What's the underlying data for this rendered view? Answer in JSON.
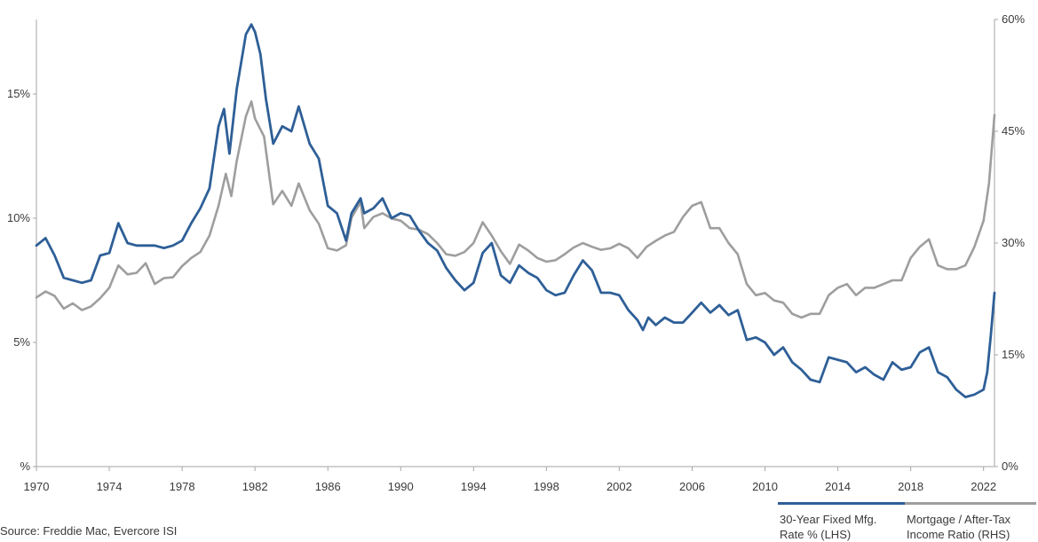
{
  "chart_data": {
    "type": "line",
    "title": "",
    "x_ticks": [
      "1970",
      "1974",
      "1978",
      "1982",
      "1986",
      "1990",
      "1994",
      "1998",
      "2002",
      "2006",
      "2010",
      "2014",
      "2018",
      "2022"
    ],
    "xlim": [
      1970,
      2022.6
    ],
    "y_left": {
      "ticks": [
        "%",
        "5%",
        "10%",
        "15%"
      ],
      "tick_values": [
        0,
        5,
        10,
        15
      ],
      "ylim": [
        0,
        18
      ]
    },
    "y_right": {
      "ticks": [
        "0%",
        "15%",
        "30%",
        "45%",
        "60%"
      ],
      "tick_values": [
        0,
        15,
        30,
        45,
        60
      ],
      "ylim": [
        0,
        60
      ]
    },
    "grid": false,
    "legend_position": "bottom-right",
    "series": [
      {
        "name": "30-Year Fixed Mfg. Rate % (LHS)",
        "axis": "left",
        "color": "#2e5f97",
        "points": [
          [
            1970,
            8.9
          ],
          [
            1970.5,
            9.2
          ],
          [
            1971,
            8.5
          ],
          [
            1971.5,
            7.6
          ],
          [
            1972,
            7.5
          ],
          [
            1972.5,
            7.4
          ],
          [
            1973,
            7.5
          ],
          [
            1973.5,
            8.5
          ],
          [
            1974,
            8.6
          ],
          [
            1974.5,
            9.8
          ],
          [
            1975,
            9.0
          ],
          [
            1975.5,
            8.9
          ],
          [
            1976,
            8.9
          ],
          [
            1976.5,
            8.9
          ],
          [
            1977,
            8.8
          ],
          [
            1977.5,
            8.9
          ],
          [
            1978,
            9.1
          ],
          [
            1978.5,
            9.8
          ],
          [
            1979,
            10.4
          ],
          [
            1979.5,
            11.2
          ],
          [
            1980,
            13.7
          ],
          [
            1980.3,
            14.4
          ],
          [
            1980.6,
            12.6
          ],
          [
            1981,
            15.2
          ],
          [
            1981.5,
            17.4
          ],
          [
            1981.8,
            17.8
          ],
          [
            1982,
            17.5
          ],
          [
            1982.3,
            16.6
          ],
          [
            1982.6,
            14.8
          ],
          [
            1983,
            13.0
          ],
          [
            1983.5,
            13.7
          ],
          [
            1984,
            13.5
          ],
          [
            1984.4,
            14.5
          ],
          [
            1985,
            13.0
          ],
          [
            1985.5,
            12.4
          ],
          [
            1986,
            10.5
          ],
          [
            1986.5,
            10.2
          ],
          [
            1987,
            9.1
          ],
          [
            1987.3,
            10.2
          ],
          [
            1987.8,
            10.8
          ],
          [
            1988,
            10.2
          ],
          [
            1988.5,
            10.4
          ],
          [
            1989,
            10.8
          ],
          [
            1989.5,
            10.0
          ],
          [
            1990,
            10.2
          ],
          [
            1990.5,
            10.1
          ],
          [
            1991,
            9.5
          ],
          [
            1991.5,
            9.0
          ],
          [
            1992,
            8.7
          ],
          [
            1992.5,
            8.0
          ],
          [
            1993,
            7.5
          ],
          [
            1993.5,
            7.1
          ],
          [
            1994,
            7.4
          ],
          [
            1994.5,
            8.6
          ],
          [
            1995,
            9.0
          ],
          [
            1995.5,
            7.7
          ],
          [
            1996,
            7.4
          ],
          [
            1996.5,
            8.1
          ],
          [
            1997,
            7.8
          ],
          [
            1997.5,
            7.6
          ],
          [
            1998,
            7.1
          ],
          [
            1998.5,
            6.9
          ],
          [
            1999,
            7.0
          ],
          [
            1999.5,
            7.7
          ],
          [
            2000,
            8.3
          ],
          [
            2000.5,
            7.9
          ],
          [
            2001,
            7.0
          ],
          [
            2001.5,
            7.0
          ],
          [
            2002,
            6.9
          ],
          [
            2002.5,
            6.3
          ],
          [
            2003,
            5.9
          ],
          [
            2003.3,
            5.5
          ],
          [
            2003.6,
            6.0
          ],
          [
            2004,
            5.7
          ],
          [
            2004.5,
            6.0
          ],
          [
            2005,
            5.8
          ],
          [
            2005.5,
            5.8
          ],
          [
            2006,
            6.2
          ],
          [
            2006.5,
            6.6
          ],
          [
            2007,
            6.2
          ],
          [
            2007.5,
            6.5
          ],
          [
            2008,
            6.1
          ],
          [
            2008.5,
            6.3
          ],
          [
            2009,
            5.1
          ],
          [
            2009.5,
            5.2
          ],
          [
            2010,
            5.0
          ],
          [
            2010.5,
            4.5
          ],
          [
            2011,
            4.8
          ],
          [
            2011.5,
            4.2
          ],
          [
            2012,
            3.9
          ],
          [
            2012.5,
            3.5
          ],
          [
            2013,
            3.4
          ],
          [
            2013.5,
            4.4
          ],
          [
            2014,
            4.3
          ],
          [
            2014.5,
            4.2
          ],
          [
            2015,
            3.8
          ],
          [
            2015.5,
            4.0
          ],
          [
            2016,
            3.7
          ],
          [
            2016.5,
            3.5
          ],
          [
            2017,
            4.2
          ],
          [
            2017.5,
            3.9
          ],
          [
            2018,
            4.0
          ],
          [
            2018.5,
            4.6
          ],
          [
            2019,
            4.8
          ],
          [
            2019.5,
            3.8
          ],
          [
            2020,
            3.6
          ],
          [
            2020.5,
            3.1
          ],
          [
            2021,
            2.8
          ],
          [
            2021.5,
            2.9
          ],
          [
            2022,
            3.1
          ],
          [
            2022.2,
            3.8
          ],
          [
            2022.4,
            5.3
          ],
          [
            2022.6,
            7.0
          ]
        ]
      },
      {
        "name": "Mortgage / After-Tax Income Ratio (RHS)",
        "axis": "right",
        "color": "#9e9e9e",
        "points": [
          [
            1970,
            22.7
          ],
          [
            1970.5,
            23.5
          ],
          [
            1971,
            22.9
          ],
          [
            1971.5,
            21.2
          ],
          [
            1972,
            21.9
          ],
          [
            1972.5,
            21.0
          ],
          [
            1973,
            21.5
          ],
          [
            1973.5,
            22.6
          ],
          [
            1974,
            24.0
          ],
          [
            1974.5,
            27.0
          ],
          [
            1975,
            25.8
          ],
          [
            1975.5,
            26.0
          ],
          [
            1976,
            27.3
          ],
          [
            1976.5,
            24.5
          ],
          [
            1977,
            25.3
          ],
          [
            1977.5,
            25.4
          ],
          [
            1978,
            26.9
          ],
          [
            1978.5,
            28.0
          ],
          [
            1979,
            28.8
          ],
          [
            1979.5,
            31.0
          ],
          [
            1980,
            35.0
          ],
          [
            1980.4,
            39.3
          ],
          [
            1980.7,
            36.3
          ],
          [
            1981,
            41.0
          ],
          [
            1981.5,
            47.0
          ],
          [
            1981.8,
            49.0
          ],
          [
            1982,
            46.7
          ],
          [
            1982.5,
            44.3
          ],
          [
            1983,
            35.2
          ],
          [
            1983.5,
            37.0
          ],
          [
            1984,
            35.0
          ],
          [
            1984.4,
            38.0
          ],
          [
            1985,
            34.4
          ],
          [
            1985.5,
            32.6
          ],
          [
            1986,
            29.3
          ],
          [
            1986.5,
            29.0
          ],
          [
            1987,
            29.7
          ],
          [
            1987.3,
            33.4
          ],
          [
            1987.8,
            35.5
          ],
          [
            1988,
            32.0
          ],
          [
            1988.5,
            33.5
          ],
          [
            1989,
            34.0
          ],
          [
            1989.5,
            33.3
          ],
          [
            1990,
            33.0
          ],
          [
            1990.5,
            32.0
          ],
          [
            1991,
            31.8
          ],
          [
            1991.5,
            31.2
          ],
          [
            1992,
            30.0
          ],
          [
            1992.5,
            28.5
          ],
          [
            1993,
            28.3
          ],
          [
            1993.5,
            28.8
          ],
          [
            1994,
            30.0
          ],
          [
            1994.5,
            32.8
          ],
          [
            1995,
            31.0
          ],
          [
            1995.5,
            28.9
          ],
          [
            1996,
            27.2
          ],
          [
            1996.5,
            29.8
          ],
          [
            1997,
            29.0
          ],
          [
            1997.5,
            28.0
          ],
          [
            1998,
            27.5
          ],
          [
            1998.5,
            27.7
          ],
          [
            1999,
            28.5
          ],
          [
            1999.5,
            29.4
          ],
          [
            2000,
            30.0
          ],
          [
            2000.5,
            29.5
          ],
          [
            2001,
            29.1
          ],
          [
            2001.5,
            29.3
          ],
          [
            2002,
            29.9
          ],
          [
            2002.5,
            29.3
          ],
          [
            2003,
            28.0
          ],
          [
            2003.5,
            29.5
          ],
          [
            2004,
            30.3
          ],
          [
            2004.5,
            31.0
          ],
          [
            2005,
            31.5
          ],
          [
            2005.5,
            33.5
          ],
          [
            2006,
            35.0
          ],
          [
            2006.5,
            35.5
          ],
          [
            2007,
            32.0
          ],
          [
            2007.5,
            32.0
          ],
          [
            2008,
            30.0
          ],
          [
            2008.5,
            28.5
          ],
          [
            2009,
            24.5
          ],
          [
            2009.5,
            23.0
          ],
          [
            2010,
            23.3
          ],
          [
            2010.5,
            22.3
          ],
          [
            2011,
            22.0
          ],
          [
            2011.5,
            20.5
          ],
          [
            2012,
            20.0
          ],
          [
            2012.5,
            20.5
          ],
          [
            2013,
            20.5
          ],
          [
            2013.5,
            23.0
          ],
          [
            2014,
            24.0
          ],
          [
            2014.5,
            24.5
          ],
          [
            2015,
            23.0
          ],
          [
            2015.5,
            24.0
          ],
          [
            2016,
            24.0
          ],
          [
            2016.5,
            24.5
          ],
          [
            2017,
            25.0
          ],
          [
            2017.5,
            25.0
          ],
          [
            2018,
            28.0
          ],
          [
            2018.5,
            29.5
          ],
          [
            2019,
            30.5
          ],
          [
            2019.5,
            27.0
          ],
          [
            2020,
            26.5
          ],
          [
            2020.5,
            26.5
          ],
          [
            2021,
            27.0
          ],
          [
            2021.5,
            29.5
          ],
          [
            2022,
            33.0
          ],
          [
            2022.3,
            38.0
          ],
          [
            2022.6,
            47.2
          ]
        ]
      }
    ]
  },
  "legend": {
    "items": [
      {
        "label_line1": "30-Year Fixed Mfg.",
        "label_line2": "Rate % (LHS)",
        "color": "#2e5f97"
      },
      {
        "label_line1": "Mortgage / After-Tax",
        "label_line2": "Income Ratio (RHS)",
        "color": "#9e9e9e"
      }
    ]
  },
  "source": "Source: Freddie Mac, Evercore ISI"
}
